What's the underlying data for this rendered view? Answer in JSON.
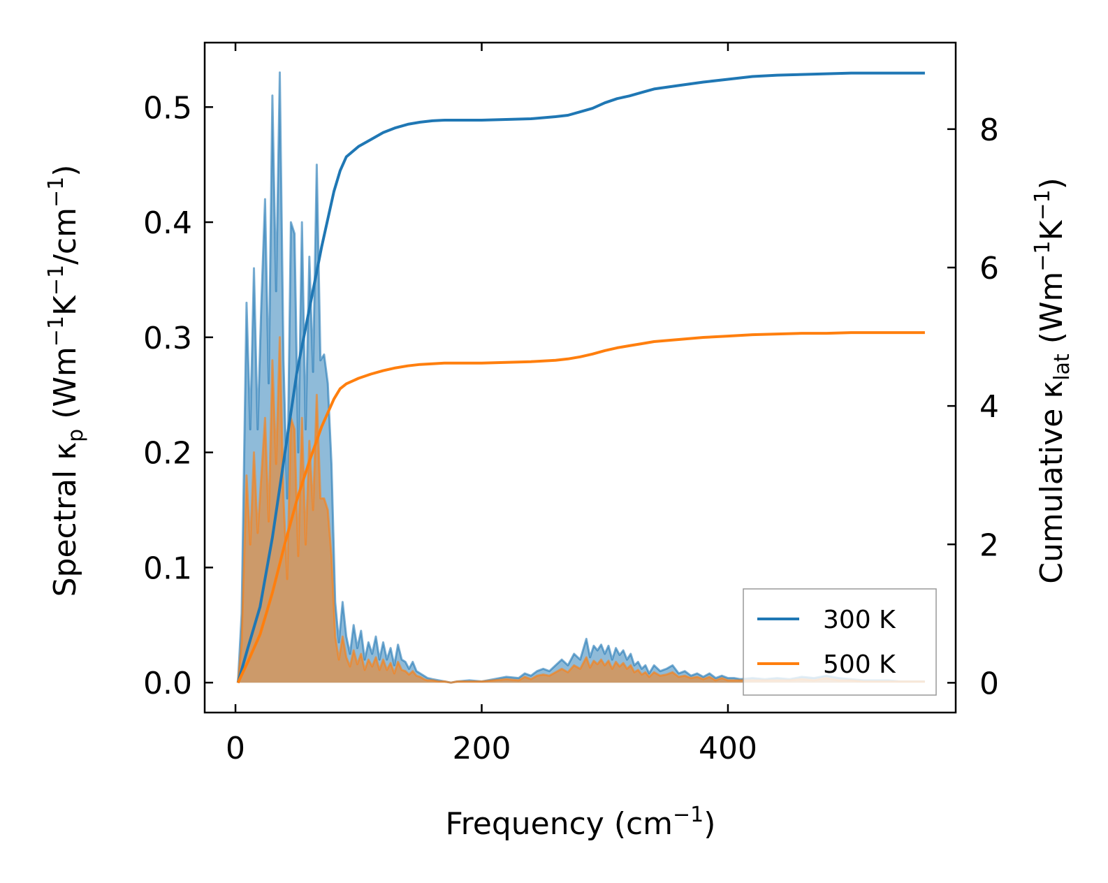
{
  "chart_data": {
    "type": "line",
    "xlabel": {
      "main": "Frequency (cm",
      "sup": "−1",
      "end": ")"
    },
    "ylabel_left": {
      "pre": "Spectral κ",
      "sub": "p",
      "mid1": " (Wm",
      "sup1": "−1",
      "mid2": "K",
      "sup2": "−1",
      "mid3": "/cm",
      "sup3": "−1",
      "end": ")"
    },
    "ylabel_right": {
      "pre": "Cumulative κ",
      "sub": "lat",
      "mid1": " (Wm",
      "sup1": "−1",
      "mid2": "K",
      "sup2": "−1",
      "end": ")"
    },
    "xlim": [
      -25,
      585
    ],
    "ylim_left": [
      -0.026,
      0.556
    ],
    "ylim_right": [
      -0.43,
      9.25
    ],
    "x_ticks": [
      0,
      200,
      400
    ],
    "x_tick_labels": [
      "0",
      "200",
      "400"
    ],
    "y_left_ticks": [
      0.0,
      0.1,
      0.2,
      0.3,
      0.4,
      0.5
    ],
    "y_left_tick_labels": [
      "0.0",
      "0.1",
      "0.2",
      "0.3",
      "0.4",
      "0.5"
    ],
    "y_right_ticks": [
      0,
      2,
      4,
      6,
      8
    ],
    "y_right_tick_labels": [
      "0",
      "2",
      "4",
      "6",
      "8"
    ],
    "legend": {
      "position": "lower-right",
      "entries": [
        "300 K",
        "500 K"
      ]
    },
    "colors": {
      "s300": "#1f77b4",
      "s500": "#ff7f0e"
    },
    "series": [
      {
        "name": "300 K",
        "color": "#1f77b4",
        "spectral": {
          "x": [
            2,
            5,
            9,
            12,
            15,
            18,
            21,
            24,
            27,
            30,
            33,
            36,
            39,
            42,
            45,
            48,
            51,
            54,
            57,
            60,
            63,
            66,
            69,
            72,
            75,
            78,
            81,
            84,
            87,
            90,
            93,
            96,
            99,
            102,
            105,
            108,
            111,
            114,
            117,
            120,
            123,
            126,
            129,
            132,
            135,
            138,
            141,
            144,
            147,
            150,
            153,
            156,
            160,
            165,
            170,
            175,
            180,
            190,
            200,
            210,
            220,
            230,
            235,
            240,
            245,
            250,
            255,
            260,
            265,
            270,
            275,
            280,
            285,
            288,
            291,
            294,
            297,
            300,
            303,
            306,
            309,
            312,
            315,
            318,
            321,
            324,
            327,
            330,
            333,
            336,
            340,
            345,
            350,
            355,
            360,
            365,
            370,
            375,
            380,
            385,
            390,
            395,
            400,
            405,
            410,
            420,
            430,
            440,
            450,
            460,
            470,
            480,
            490,
            500,
            510,
            520,
            530,
            540,
            550,
            560
          ],
          "y": [
            0.0,
            0.06,
            0.33,
            0.22,
            0.36,
            0.22,
            0.33,
            0.42,
            0.26,
            0.51,
            0.34,
            0.53,
            0.28,
            0.16,
            0.4,
            0.39,
            0.2,
            0.4,
            0.22,
            0.37,
            0.27,
            0.45,
            0.28,
            0.285,
            0.26,
            0.19,
            0.07,
            0.035,
            0.07,
            0.04,
            0.025,
            0.05,
            0.03,
            0.045,
            0.02,
            0.035,
            0.025,
            0.04,
            0.02,
            0.035,
            0.02,
            0.03,
            0.015,
            0.033,
            0.02,
            0.018,
            0.012,
            0.018,
            0.01,
            0.008,
            0.006,
            0.004,
            0.003,
            0.002,
            0.001,
            0.0,
            0.001,
            0.002,
            0.001,
            0.003,
            0.005,
            0.004,
            0.008,
            0.006,
            0.01,
            0.012,
            0.01,
            0.015,
            0.02,
            0.015,
            0.025,
            0.02,
            0.038,
            0.022,
            0.032,
            0.028,
            0.033,
            0.025,
            0.032,
            0.02,
            0.03,
            0.024,
            0.028,
            0.02,
            0.025,
            0.015,
            0.018,
            0.012,
            0.015,
            0.008,
            0.015,
            0.01,
            0.012,
            0.015,
            0.008,
            0.01,
            0.006,
            0.008,
            0.005,
            0.008,
            0.004,
            0.006,
            0.004,
            0.004,
            0.003,
            0.004,
            0.003,
            0.004,
            0.003,
            0.005,
            0.004,
            0.006,
            0.004,
            0.003,
            0.002,
            0.002,
            0.002,
            0.001,
            0.001,
            0.001
          ]
        },
        "cumulative": {
          "x": [
            2,
            10,
            20,
            30,
            40,
            50,
            60,
            70,
            80,
            85,
            90,
            100,
            110,
            120,
            130,
            140,
            150,
            160,
            170,
            180,
            200,
            220,
            240,
            260,
            270,
            280,
            290,
            300,
            310,
            320,
            330,
            340,
            360,
            380,
            400,
            420,
            440,
            460,
            480,
            500,
            520,
            540,
            560
          ],
          "y": [
            0.0,
            0.5,
            1.1,
            2.1,
            3.3,
            4.5,
            5.4,
            6.3,
            7.1,
            7.4,
            7.6,
            7.75,
            7.85,
            7.95,
            8.02,
            8.07,
            8.1,
            8.12,
            8.13,
            8.13,
            8.13,
            8.14,
            8.15,
            8.18,
            8.2,
            8.25,
            8.3,
            8.38,
            8.44,
            8.48,
            8.53,
            8.58,
            8.63,
            8.68,
            8.72,
            8.76,
            8.78,
            8.79,
            8.8,
            8.81,
            8.81,
            8.81,
            8.81
          ]
        }
      },
      {
        "name": "500 K",
        "color": "#ff7f0e",
        "spectral": {
          "x": [
            2,
            5,
            9,
            12,
            15,
            18,
            21,
            24,
            27,
            30,
            33,
            36,
            39,
            42,
            45,
            48,
            51,
            54,
            57,
            60,
            63,
            66,
            69,
            72,
            75,
            78,
            81,
            84,
            87,
            90,
            93,
            96,
            99,
            102,
            105,
            108,
            111,
            114,
            117,
            120,
            123,
            126,
            129,
            132,
            135,
            138,
            141,
            144,
            147,
            150,
            153,
            156,
            160,
            165,
            170,
            175,
            180,
            190,
            200,
            210,
            220,
            230,
            235,
            240,
            245,
            250,
            255,
            260,
            265,
            270,
            275,
            280,
            285,
            288,
            291,
            294,
            297,
            300,
            303,
            306,
            309,
            312,
            315,
            318,
            321,
            324,
            327,
            330,
            333,
            336,
            340,
            345,
            350,
            355,
            360,
            365,
            370,
            375,
            380,
            385,
            390,
            395,
            400,
            405,
            410,
            420,
            430,
            440,
            450,
            460,
            470,
            480,
            490,
            500,
            510,
            520,
            530,
            540,
            550,
            560
          ],
          "y": [
            0.0,
            0.035,
            0.18,
            0.12,
            0.2,
            0.13,
            0.18,
            0.23,
            0.14,
            0.28,
            0.19,
            0.3,
            0.16,
            0.09,
            0.23,
            0.22,
            0.11,
            0.23,
            0.12,
            0.21,
            0.15,
            0.25,
            0.16,
            0.16,
            0.15,
            0.11,
            0.04,
            0.02,
            0.04,
            0.022,
            0.014,
            0.028,
            0.016,
            0.025,
            0.011,
            0.02,
            0.014,
            0.022,
            0.011,
            0.02,
            0.011,
            0.017,
            0.008,
            0.018,
            0.011,
            0.01,
            0.007,
            0.01,
            0.006,
            0.005,
            0.003,
            0.002,
            0.002,
            0.001,
            0.001,
            0.0,
            0.001,
            0.001,
            0.001,
            0.002,
            0.003,
            0.002,
            0.005,
            0.003,
            0.006,
            0.007,
            0.006,
            0.009,
            0.012,
            0.009,
            0.015,
            0.012,
            0.022,
            0.013,
            0.019,
            0.016,
            0.02,
            0.015,
            0.019,
            0.012,
            0.018,
            0.014,
            0.017,
            0.012,
            0.015,
            0.009,
            0.011,
            0.007,
            0.009,
            0.005,
            0.009,
            0.006,
            0.007,
            0.009,
            0.005,
            0.006,
            0.004,
            0.005,
            0.003,
            0.005,
            0.002,
            0.004,
            0.002,
            0.002,
            0.002,
            0.002,
            0.002,
            0.002,
            0.002,
            0.003,
            0.002,
            0.004,
            0.002,
            0.002,
            0.001,
            0.001,
            0.001,
            0.001,
            0.001,
            0.001
          ]
        },
        "cumulative": {
          "x": [
            2,
            10,
            20,
            30,
            40,
            50,
            60,
            70,
            80,
            85,
            90,
            100,
            110,
            120,
            130,
            140,
            150,
            160,
            170,
            180,
            200,
            220,
            240,
            260,
            270,
            280,
            290,
            300,
            310,
            320,
            330,
            340,
            360,
            380,
            400,
            420,
            440,
            460,
            480,
            500,
            520,
            540,
            560
          ],
          "y": [
            0.0,
            0.3,
            0.7,
            1.3,
            2.0,
            2.65,
            3.2,
            3.7,
            4.1,
            4.25,
            4.32,
            4.4,
            4.46,
            4.51,
            4.55,
            4.58,
            4.6,
            4.61,
            4.62,
            4.62,
            4.62,
            4.63,
            4.64,
            4.66,
            4.68,
            4.71,
            4.75,
            4.8,
            4.84,
            4.87,
            4.9,
            4.93,
            4.96,
            4.99,
            5.01,
            5.03,
            5.04,
            5.05,
            5.05,
            5.06,
            5.06,
            5.06,
            5.06
          ]
        }
      }
    ]
  }
}
